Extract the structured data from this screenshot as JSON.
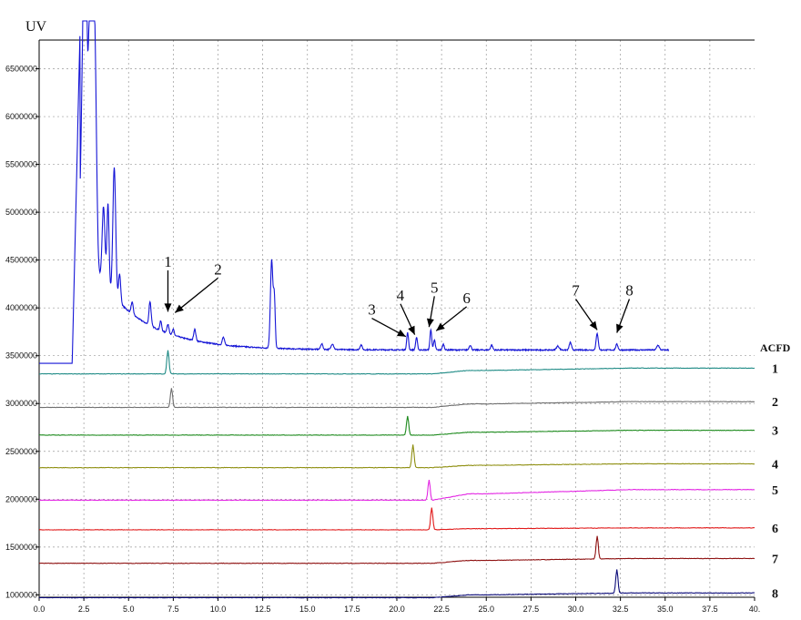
{
  "chart_data": {
    "type": "line",
    "y_label": "UV",
    "x_range": [
      0,
      40
    ],
    "y_range": [
      975000,
      6800000
    ],
    "x_ticks": [
      "0.0",
      "2.5",
      "5.0",
      "7.5",
      "10.0",
      "12.5",
      "15.0",
      "17.5",
      "20.0",
      "22.5",
      "25.0",
      "27.5",
      "30.0",
      "32.5",
      "35.0",
      "37.5",
      "40."
    ],
    "y_ticks": [
      {
        "label": "6500000",
        "value": 6500000
      },
      {
        "label": "6000000",
        "value": 6000000
      },
      {
        "label": "5500000",
        "value": 5500000
      },
      {
        "label": "5000000",
        "value": 5000000
      },
      {
        "label": "4500000",
        "value": 4500000
      },
      {
        "label": "4000000",
        "value": 4000000
      },
      {
        "label": "3500000",
        "value": 3500000
      },
      {
        "label": "3000000",
        "value": 3000000
      },
      {
        "label": "2500000",
        "value": 2500000
      },
      {
        "label": "2000000",
        "value": 2000000
      },
      {
        "label": "1500000",
        "value": 1500000
      },
      {
        "label": "1000000",
        "value": 1000000
      }
    ],
    "grid": true,
    "legend_title": "ACFD",
    "main_trace": {
      "color": "#1515d6",
      "baseline": 3420000,
      "baseline_end": 3560000,
      "decay_start": 2.3,
      "decay_amp": 1150000,
      "decay_tau": 2.6,
      "decay_plateau": 3560000,
      "peaks": [
        {
          "x": 2.5,
          "h": 2600000,
          "w": 0.12
        },
        {
          "x": 2.6,
          "h": 1600000,
          "w": 0.06
        },
        {
          "x": 2.85,
          "h": 2600000,
          "w": 0.12
        },
        {
          "x": 3.1,
          "h": 2400000,
          "w": 0.1
        },
        {
          "x": 3.6,
          "h": 800000,
          "w": 0.08
        },
        {
          "x": 3.85,
          "h": 900000,
          "w": 0.06
        },
        {
          "x": 4.2,
          "h": 1350000,
          "w": 0.08
        },
        {
          "x": 4.5,
          "h": 300000,
          "w": 0.06
        },
        {
          "x": 5.2,
          "h": 120000,
          "w": 0.06
        },
        {
          "x": 6.2,
          "h": 250000,
          "w": 0.06
        },
        {
          "x": 6.8,
          "h": 100000,
          "w": 0.05
        },
        {
          "x": 7.2,
          "h": 90000,
          "w": 0.06
        },
        {
          "x": 7.5,
          "h": 60000,
          "w": 0.05
        },
        {
          "x": 8.7,
          "h": 120000,
          "w": 0.06
        },
        {
          "x": 10.3,
          "h": 80000,
          "w": 0.06
        },
        {
          "x": 13.0,
          "h": 920000,
          "w": 0.07
        },
        {
          "x": 13.15,
          "h": 500000,
          "w": 0.05
        },
        {
          "x": 15.8,
          "h": 60000,
          "w": 0.06
        },
        {
          "x": 16.4,
          "h": 60000,
          "w": 0.07
        },
        {
          "x": 18.0,
          "h": 50000,
          "w": 0.06
        },
        {
          "x": 20.6,
          "h": 180000,
          "w": 0.05
        },
        {
          "x": 21.1,
          "h": 130000,
          "w": 0.05
        },
        {
          "x": 21.9,
          "h": 210000,
          "w": 0.05
        },
        {
          "x": 22.1,
          "h": 100000,
          "w": 0.05
        },
        {
          "x": 22.6,
          "h": 60000,
          "w": 0.05
        },
        {
          "x": 24.1,
          "h": 50000,
          "w": 0.06
        },
        {
          "x": 25.3,
          "h": 50000,
          "w": 0.06
        },
        {
          "x": 29.0,
          "h": 40000,
          "w": 0.08
        },
        {
          "x": 29.7,
          "h": 80000,
          "w": 0.06
        },
        {
          "x": 31.2,
          "h": 170000,
          "w": 0.06
        },
        {
          "x": 32.3,
          "h": 60000,
          "w": 0.06
        },
        {
          "x": 34.6,
          "h": 50000,
          "w": 0.07
        }
      ]
    },
    "series": [
      {
        "name": "1",
        "color": "#1f8b86",
        "base_start": 3310000,
        "base_end": 3370000,
        "peak_x": 7.2,
        "peak_h": 250000,
        "peak_w": 0.06
      },
      {
        "name": "2",
        "color": "#6e6e6e",
        "base_start": 2960000,
        "base_end": 3020000,
        "peak_x": 7.4,
        "peak_h": 200000,
        "peak_w": 0.06
      },
      {
        "name": "3",
        "color": "#1d8a1d",
        "base_start": 2670000,
        "base_end": 2720000,
        "peak_x": 20.6,
        "peak_h": 200000,
        "peak_w": 0.06
      },
      {
        "name": "4",
        "color": "#8f8f11",
        "base_start": 2330000,
        "base_end": 2370000,
        "peak_x": 20.9,
        "peak_h": 240000,
        "peak_w": 0.06
      },
      {
        "name": "5",
        "color": "#e326e3",
        "base_start": 1990000,
        "base_end": 2100000,
        "peak_x": 21.8,
        "peak_h": 210000,
        "peak_w": 0.06
      },
      {
        "name": "6",
        "color": "#e11919",
        "base_start": 1680000,
        "base_end": 1700000,
        "peak_x": 21.95,
        "peak_h": 230000,
        "peak_w": 0.06
      },
      {
        "name": "7",
        "color": "#8e1010",
        "base_start": 1330000,
        "base_end": 1380000,
        "peak_x": 31.2,
        "peak_h": 240000,
        "peak_w": 0.06
      },
      {
        "name": "8",
        "color": "#0d0d7a",
        "base_start": 970000,
        "base_end": 1020000,
        "peak_x": 32.3,
        "peak_h": 250000,
        "peak_w": 0.06
      }
    ],
    "annotations": [
      {
        "label": "1",
        "text_x": 7.2,
        "text_y": 4430000,
        "arrow_x": 7.2,
        "arrow_y": 3960000
      },
      {
        "label": "2",
        "text_x": 10.0,
        "text_y": 4350000,
        "arrow_x": 7.6,
        "arrow_y": 3950000
      },
      {
        "label": "3",
        "text_x": 18.6,
        "text_y": 3930000,
        "arrow_x": 20.5,
        "arrow_y": 3700000
      },
      {
        "label": "4",
        "text_x": 20.2,
        "text_y": 4080000,
        "arrow_x": 21.0,
        "arrow_y": 3720000
      },
      {
        "label": "5",
        "text_x": 22.1,
        "text_y": 4160000,
        "arrow_x": 21.8,
        "arrow_y": 3800000
      },
      {
        "label": "6",
        "text_x": 23.9,
        "text_y": 4050000,
        "arrow_x": 22.2,
        "arrow_y": 3760000
      },
      {
        "label": "7",
        "text_x": 30.0,
        "text_y": 4130000,
        "arrow_x": 31.2,
        "arrow_y": 3770000
      },
      {
        "label": "8",
        "text_x": 33.0,
        "text_y": 4130000,
        "arrow_x": 32.3,
        "arrow_y": 3740000
      }
    ]
  }
}
